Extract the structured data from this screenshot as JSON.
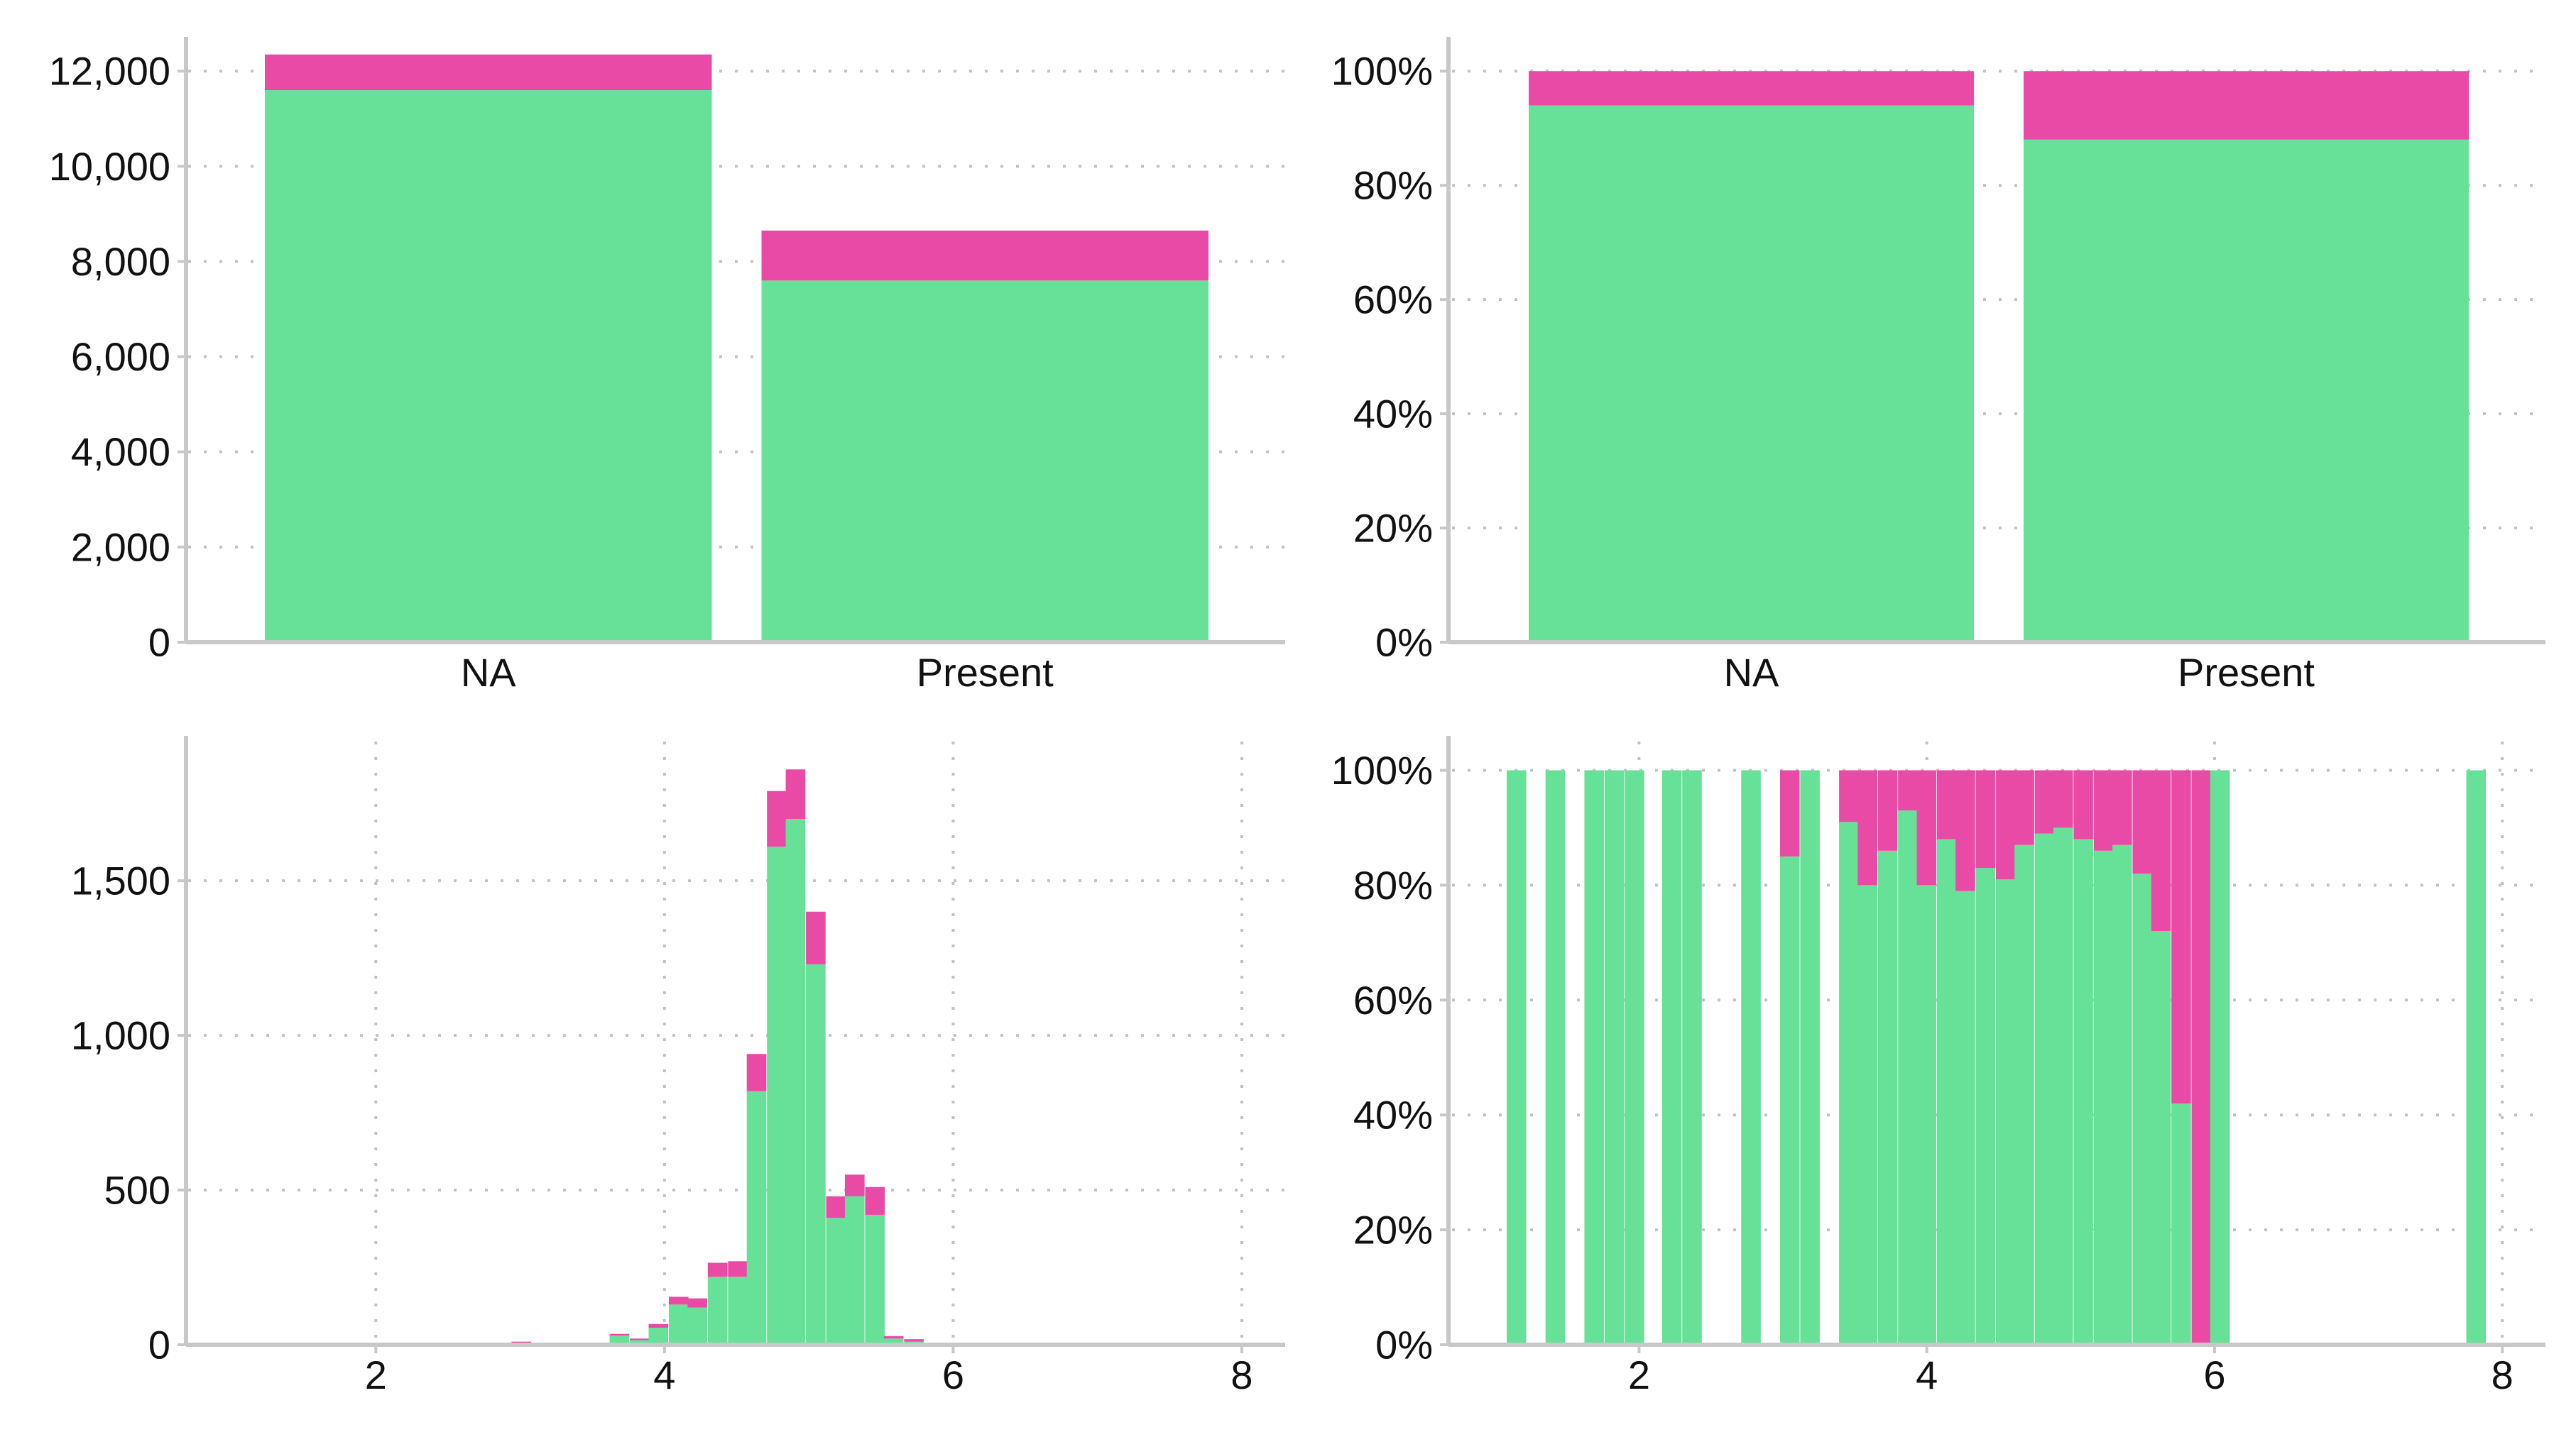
{
  "colors": {
    "series_a": "#67e198",
    "series_b": "#e94aa6",
    "axis": "#c8c8c8",
    "grid": "#c2c2c2",
    "text": "#111111"
  },
  "chart_data": [
    {
      "id": "top-left",
      "type": "bar",
      "stacked": true,
      "categories": [
        "NA",
        "Present"
      ],
      "series": [
        {
          "values": [
            11600,
            7600
          ],
          "color": "#67e198"
        },
        {
          "values": [
            750,
            1050
          ],
          "color": "#e94aa6"
        }
      ],
      "ylim": [
        0,
        12600
      ],
      "yticks": [
        0,
        2000,
        4000,
        6000,
        8000,
        10000,
        12000
      ],
      "ytick_labels": [
        "0",
        "2,000",
        "4,000",
        "6,000",
        "8,000",
        "10,000",
        "12,000"
      ],
      "xtick_labels": [
        "NA",
        "Present"
      ],
      "grid": true
    },
    {
      "id": "top-right",
      "type": "bar",
      "stacked": true,
      "percent": true,
      "categories": [
        "NA",
        "Present"
      ],
      "series": [
        {
          "values": [
            0.94,
            0.88
          ],
          "color": "#67e198"
        },
        {
          "values": [
            0.06,
            0.12
          ],
          "color": "#e94aa6"
        }
      ],
      "ylim": [
        0,
        1.05
      ],
      "yticks": [
        0,
        0.2,
        0.4,
        0.6,
        0.8,
        1.0
      ],
      "ytick_labels": [
        "0%",
        "20%",
        "40%",
        "60%",
        "80%",
        "100%"
      ],
      "xtick_labels": [
        "NA",
        "Present"
      ],
      "grid": true
    },
    {
      "id": "bottom-left",
      "type": "bar",
      "stacked": true,
      "histogram": true,
      "bin_width": 0.136,
      "bin_starts": [
        2.94,
        3.62,
        3.76,
        3.89,
        4.03,
        4.16,
        4.3,
        4.44,
        4.57,
        4.71,
        4.84,
        4.98,
        5.12,
        5.25,
        5.39,
        5.52,
        5.66
      ],
      "series": [
        {
          "values": [
            5,
            30,
            15,
            55,
            130,
            120,
            220,
            220,
            820,
            1610,
            1700,
            1230,
            410,
            480,
            420,
            20,
            10
          ],
          "color": "#67e198"
        },
        {
          "values": [
            5,
            5,
            5,
            12,
            25,
            30,
            45,
            50,
            120,
            180,
            160,
            170,
            70,
            70,
            90,
            8,
            8
          ],
          "color": "#e94aa6"
        }
      ],
      "xlim": [
        0.7,
        8.3
      ],
      "xticks": [
        2,
        4,
        6,
        8
      ],
      "xtick_labels": [
        "2",
        "4",
        "6",
        "8"
      ],
      "ylim": [
        0,
        1950
      ],
      "yticks": [
        0,
        500,
        1000,
        1500
      ],
      "ytick_labels": [
        "0",
        "500",
        "1,000",
        "1,500"
      ],
      "grid": true
    },
    {
      "id": "bottom-right",
      "type": "bar",
      "stacked": true,
      "percent": true,
      "histogram": true,
      "bin_width": 0.136,
      "bin_starts": [
        1.08,
        1.35,
        1.62,
        1.76,
        1.9,
        2.16,
        2.3,
        2.71,
        2.98,
        3.12,
        3.39,
        3.52,
        3.66,
        3.8,
        3.93,
        4.07,
        4.2,
        4.34,
        4.48,
        4.61,
        4.75,
        4.88,
        5.02,
        5.16,
        5.29,
        5.43,
        5.56,
        5.7,
        5.84,
        5.97,
        7.75
      ],
      "series": [
        {
          "values": [
            1,
            1,
            1,
            1,
            1,
            1,
            1,
            1,
            0.85,
            1,
            0.91,
            0.8,
            0.86,
            0.93,
            0.8,
            0.88,
            0.79,
            0.83,
            0.81,
            0.87,
            0.89,
            0.9,
            0.88,
            0.86,
            0.87,
            0.82,
            0.72,
            0.42,
            0,
            1,
            1
          ],
          "color": "#67e198"
        },
        {
          "values": [
            0,
            0,
            0,
            0,
            0,
            0,
            0,
            0,
            0.15,
            0,
            0.09,
            0.2,
            0.14,
            0.07,
            0.2,
            0.12,
            0.21,
            0.17,
            0.19,
            0.13,
            0.11,
            0.1,
            0.12,
            0.14,
            0.13,
            0.18,
            0.28,
            0.58,
            1,
            0,
            0
          ],
          "color": "#e94aa6"
        }
      ],
      "xlim": [
        0.7,
        8.3
      ],
      "xticks": [
        2,
        4,
        6,
        8
      ],
      "xtick_labels": [
        "2",
        "4",
        "6",
        "8"
      ],
      "ylim": [
        0,
        1.05
      ],
      "yticks": [
        0,
        0.2,
        0.4,
        0.6,
        0.8,
        1.0
      ],
      "ytick_labels": [
        "0%",
        "20%",
        "40%",
        "60%",
        "80%",
        "100%"
      ],
      "grid": true
    }
  ]
}
